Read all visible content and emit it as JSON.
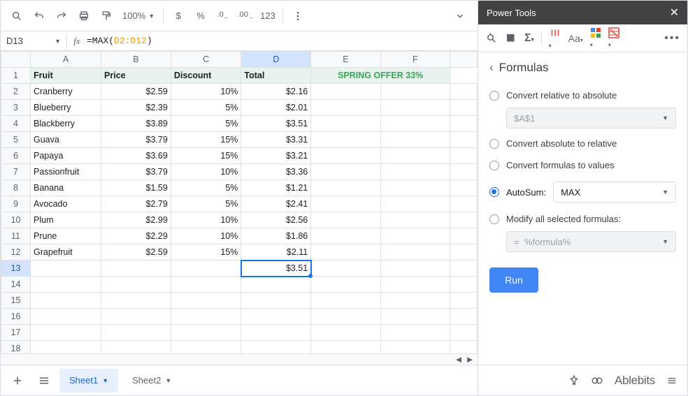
{
  "toolbar": {
    "zoom": "100%",
    "num_format": "123"
  },
  "nameBox": "D13",
  "formula": {
    "fn": "=MAX",
    "open": "(",
    "range": "D2:D12",
    "close": ")"
  },
  "columns": [
    "A",
    "B",
    "C",
    "D",
    "E",
    "F"
  ],
  "selectedCol": "D",
  "selectedRow": 13,
  "headers": [
    "Fruit",
    "Price",
    "Discount",
    "Total"
  ],
  "offer": "SPRING OFFER 33%",
  "rows": [
    {
      "fruit": "Cranberry",
      "price": "$2.59",
      "discount": "10%",
      "total": "$2.16"
    },
    {
      "fruit": "Blueberry",
      "price": "$2.39",
      "discount": "5%",
      "total": "$2.01"
    },
    {
      "fruit": "Blackberry",
      "price": "$3.89",
      "discount": "5%",
      "total": "$3.51"
    },
    {
      "fruit": "Guava",
      "price": "$3.79",
      "discount": "15%",
      "total": "$3.31"
    },
    {
      "fruit": "Papaya",
      "price": "$3.69",
      "discount": "15%",
      "total": "$3.21"
    },
    {
      "fruit": "Passionfruit",
      "price": "$3.79",
      "discount": "10%",
      "total": "$3.36"
    },
    {
      "fruit": "Banana",
      "price": "$1.59",
      "discount": "5%",
      "total": "$1.21"
    },
    {
      "fruit": "Avocado",
      "price": "$2.79",
      "discount": "5%",
      "total": "$2.41"
    },
    {
      "fruit": "Plum",
      "price": "$2.99",
      "discount": "10%",
      "total": "$2.56"
    },
    {
      "fruit": "Prune",
      "price": "$2.29",
      "discount": "10%",
      "total": "$1.86"
    },
    {
      "fruit": "Grapefruit",
      "price": "$2.59",
      "discount": "15%",
      "total": "$2.11"
    }
  ],
  "resultCell": "$3.51",
  "emptyRows": [
    14,
    15,
    16,
    17,
    18
  ],
  "sheets": {
    "active": "Sheet1",
    "other": "Sheet2"
  },
  "panel": {
    "title": "Power Tools",
    "section": "Formulas",
    "opts": {
      "rel2abs": "Convert relative to absolute",
      "rel2abs_val": "$A$1",
      "abs2rel": "Convert absolute to relative",
      "f2v": "Convert formulas to values",
      "autosum": "AutoSum:",
      "autosum_val": "MAX",
      "modify": "Modify all selected formulas:",
      "modify_prefix": "=",
      "modify_val": "%formula%"
    },
    "run": "Run",
    "brand": "Ablebits"
  },
  "colors": {
    "accent": "#1a73e8",
    "green": "#34a853"
  }
}
